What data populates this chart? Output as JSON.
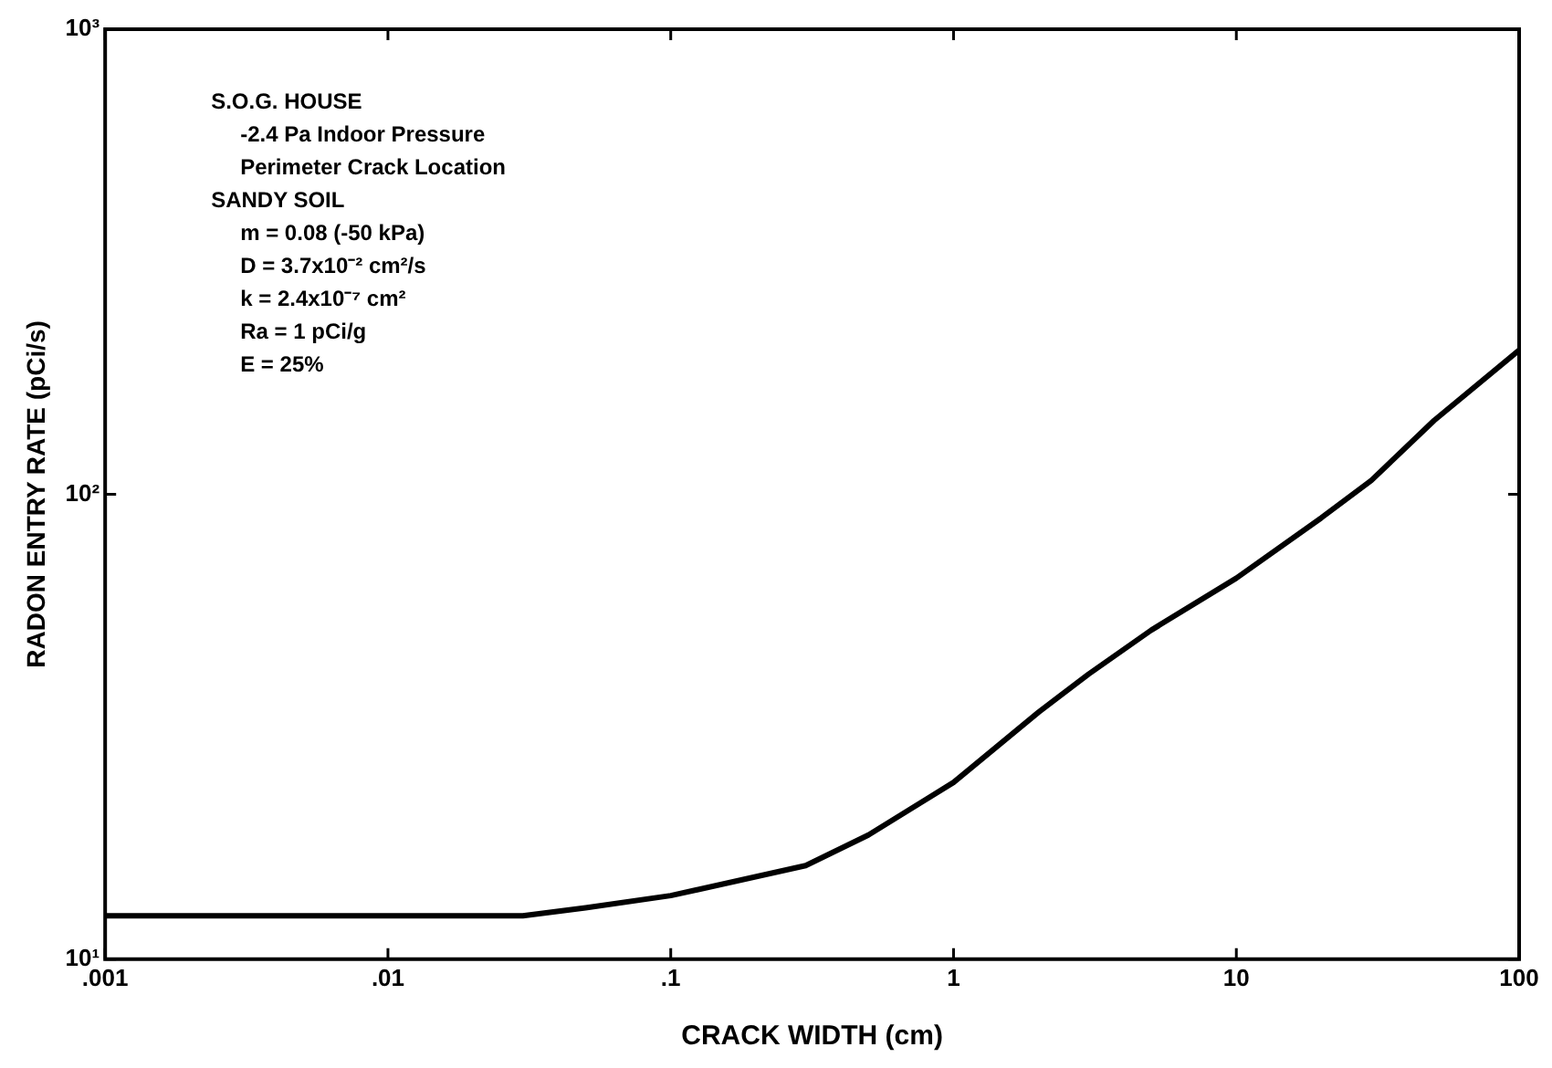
{
  "chart_data": {
    "type": "line",
    "xlabel": "CRACK WIDTH (cm)",
    "ylabel": "RADON ENTRY RATE (pCi/s)",
    "x": [
      0.001,
      0.01,
      0.03,
      0.05,
      0.1,
      0.3,
      0.5,
      1,
      2,
      3,
      5,
      10,
      20,
      30,
      50,
      100
    ],
    "series": [
      {
        "color": "#000000",
        "values": [
          12.4,
          12.4,
          12.4,
          12.9,
          13.7,
          15.9,
          18.5,
          24,
          34,
          41,
          51,
          66,
          89,
          107,
          144,
          204
        ]
      }
    ],
    "log": "xy",
    "xlim": [
      0.001,
      100
    ],
    "ylim": [
      10,
      1000
    ],
    "xticks": [
      {
        "value": 0.001,
        "label": ".001"
      },
      {
        "value": 0.01,
        "label": ".01"
      },
      {
        "value": 0.1,
        "label": ".1"
      },
      1,
      10,
      100
    ],
    "yticks": [
      {
        "value": 10,
        "label": "10¹"
      },
      {
        "value": 100,
        "label": "10²"
      },
      {
        "value": 1000,
        "label": "10³"
      }
    ],
    "grid": false,
    "legend": false,
    "marker": "none",
    "line_style": "solid",
    "annotations": [
      "S.O.G. HOUSE",
      "-2.4 Pa Indoor Pressure",
      "Perimeter Crack Location",
      "SANDY SOIL",
      "m = 0.08 (-50 kPa)",
      "D = 3.7x10⁻² cm²/s",
      "k = 2.4x10⁻⁷ cm²",
      "Ra = 1 pCi/g",
      "E = 25%"
    ]
  }
}
